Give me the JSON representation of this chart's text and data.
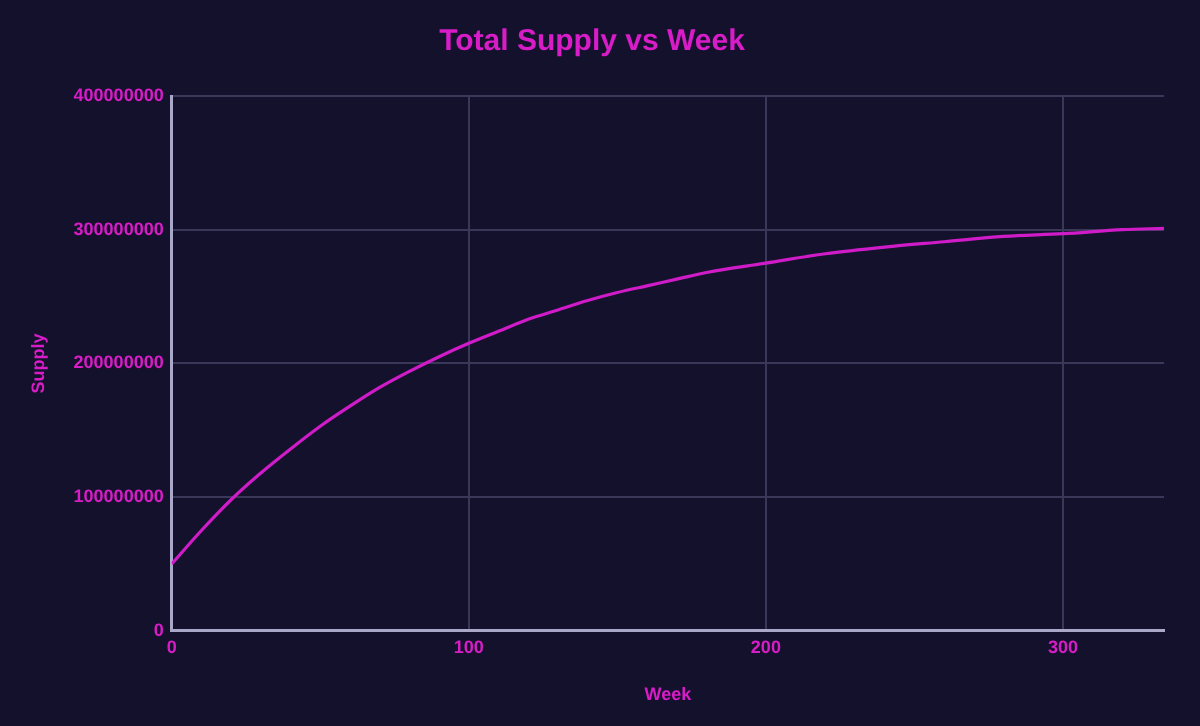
{
  "chart_data": {
    "type": "line",
    "title": "Total Supply vs Week",
    "xlabel": "Week",
    "ylabel": "Supply",
    "x": [
      0,
      10,
      20,
      30,
      40,
      50,
      60,
      70,
      80,
      90,
      100,
      110,
      120,
      130,
      140,
      150,
      160,
      170,
      180,
      200,
      220,
      240,
      260,
      280,
      300,
      320,
      334
    ],
    "series": [
      {
        "color": "#d01cc8",
        "values": [
          50000000,
          75000000,
          98000000,
          118000000,
          136000000,
          153000000,
          168000000,
          182000000,
          194000000,
          205000000,
          215000000,
          224000000,
          233000000,
          240000000,
          247000000,
          253000000,
          258000000,
          263000000,
          268000000,
          275000000,
          282000000,
          287000000,
          291000000,
          295000000,
          297000000,
          300000000,
          301000000
        ]
      }
    ],
    "xlim": [
      0,
      334
    ],
    "xticks": [
      0,
      100,
      200,
      300
    ],
    "ylim": [
      0,
      400000000
    ],
    "yticks": [
      0,
      100000000,
      200000000,
      300000000,
      400000000
    ],
    "grid": true,
    "legend": false,
    "marker": "none",
    "line_style": "solid"
  }
}
